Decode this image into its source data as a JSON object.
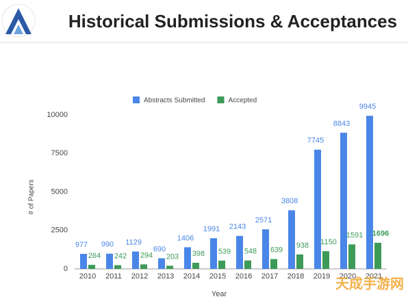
{
  "chart_data": {
    "type": "bar",
    "title": "Historical Submissions & Acceptances",
    "categories": [
      "2010",
      "2011",
      "2012",
      "2013",
      "2014",
      "2015",
      "2016",
      "2017",
      "2018",
      "2019",
      "2020",
      "2021"
    ],
    "series": [
      {
        "name": "Abstracts Submitted",
        "color": "#4a86e8",
        "values": [
          977,
          990,
          1129,
          690,
          1406,
          1991,
          2143,
          2571,
          3808,
          7745,
          8843,
          9945
        ]
      },
      {
        "name": "Accepted",
        "color": "#3d9a58",
        "values": [
          264,
          242,
          294,
          203,
          398,
          539,
          548,
          639,
          938,
          1150,
          1591,
          1696
        ]
      }
    ],
    "xlabel": "Year",
    "ylabel": "# of Papers",
    "ylim": [
      0,
      10000
    ],
    "yticks": [
      0,
      2500,
      5000,
      7500,
      10000
    ],
    "legend": "top"
  },
  "watermark": "天成手游网"
}
